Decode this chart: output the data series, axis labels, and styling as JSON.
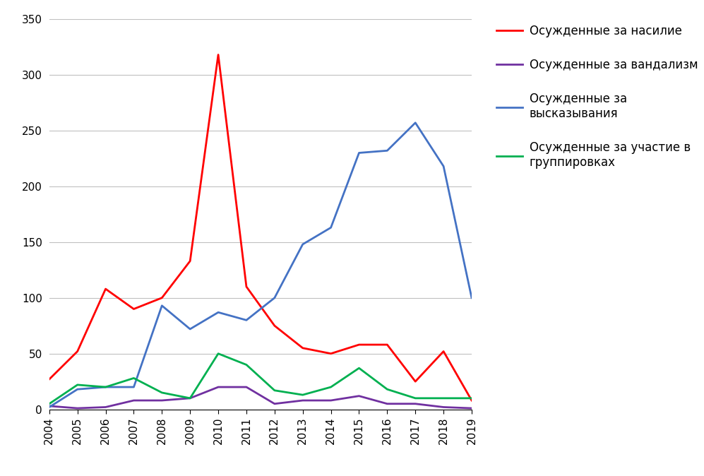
{
  "years": [
    2004,
    2005,
    2006,
    2007,
    2008,
    2009,
    2010,
    2011,
    2012,
    2013,
    2014,
    2015,
    2016,
    2017,
    2018,
    2019
  ],
  "violence": [
    27,
    52,
    108,
    90,
    100,
    133,
    318,
    110,
    75,
    55,
    50,
    58,
    58,
    25,
    52,
    8
  ],
  "vandalism": [
    3,
    1,
    2,
    8,
    8,
    10,
    20,
    20,
    5,
    8,
    8,
    12,
    5,
    5,
    2,
    1
  ],
  "speech": [
    2,
    18,
    20,
    20,
    93,
    72,
    87,
    80,
    100,
    148,
    163,
    230,
    232,
    257,
    218,
    100
  ],
  "groups": [
    5,
    22,
    20,
    28,
    15,
    10,
    50,
    40,
    17,
    13,
    20,
    37,
    18,
    10,
    10,
    10
  ],
  "colors": {
    "violence": "#FF0000",
    "vandalism": "#7030A0",
    "speech": "#4472C4",
    "groups": "#00B050"
  },
  "labels": {
    "violence": "Осужденные за насилие",
    "vandalism": "Осужденные за вандализм",
    "speech": "Осужденные за\nвысказывания",
    "groups": "Осужденные за участие в\nгруппировках"
  },
  "ylim": [
    0,
    350
  ],
  "yticks": [
    0,
    50,
    100,
    150,
    200,
    250,
    300,
    350
  ],
  "line_width": 2.0,
  "background_color": "#FFFFFF",
  "grid_color": "#C0C0C0",
  "legend_fontsize": 12,
  "tick_fontsize": 11
}
